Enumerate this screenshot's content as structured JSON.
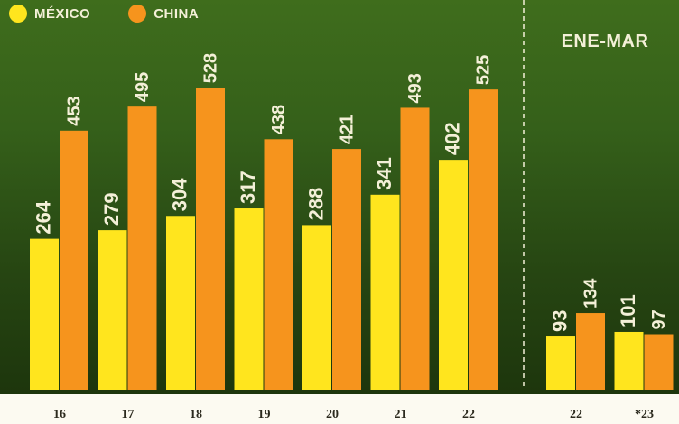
{
  "legend": [
    {
      "label": "MÉXICO",
      "color": "#ffe51e"
    },
    {
      "label": "CHINA",
      "color": "#f6941d"
    }
  ],
  "colors": {
    "mexico": "#ffe51e",
    "china": "#f6941d",
    "value_label": "#f4f0d8"
  },
  "chart_data": [
    {
      "type": "bar",
      "title": "",
      "categories": [
        "16",
        "17",
        "18",
        "19",
        "20",
        "21",
        "22"
      ],
      "series": [
        {
          "name": "MÉXICO",
          "values": [
            264,
            279,
            304,
            317,
            288,
            341,
            402
          ]
        },
        {
          "name": "CHINA",
          "values": [
            453,
            495,
            528,
            438,
            421,
            493,
            525
          ]
        }
      ]
    },
    {
      "type": "bar",
      "title": "ENE-MAR",
      "categories": [
        "22",
        "*23"
      ],
      "series": [
        {
          "name": "MÉXICO",
          "values": [
            93,
            101
          ]
        },
        {
          "name": "CHINA",
          "values": [
            134,
            97
          ]
        }
      ]
    }
  ]
}
